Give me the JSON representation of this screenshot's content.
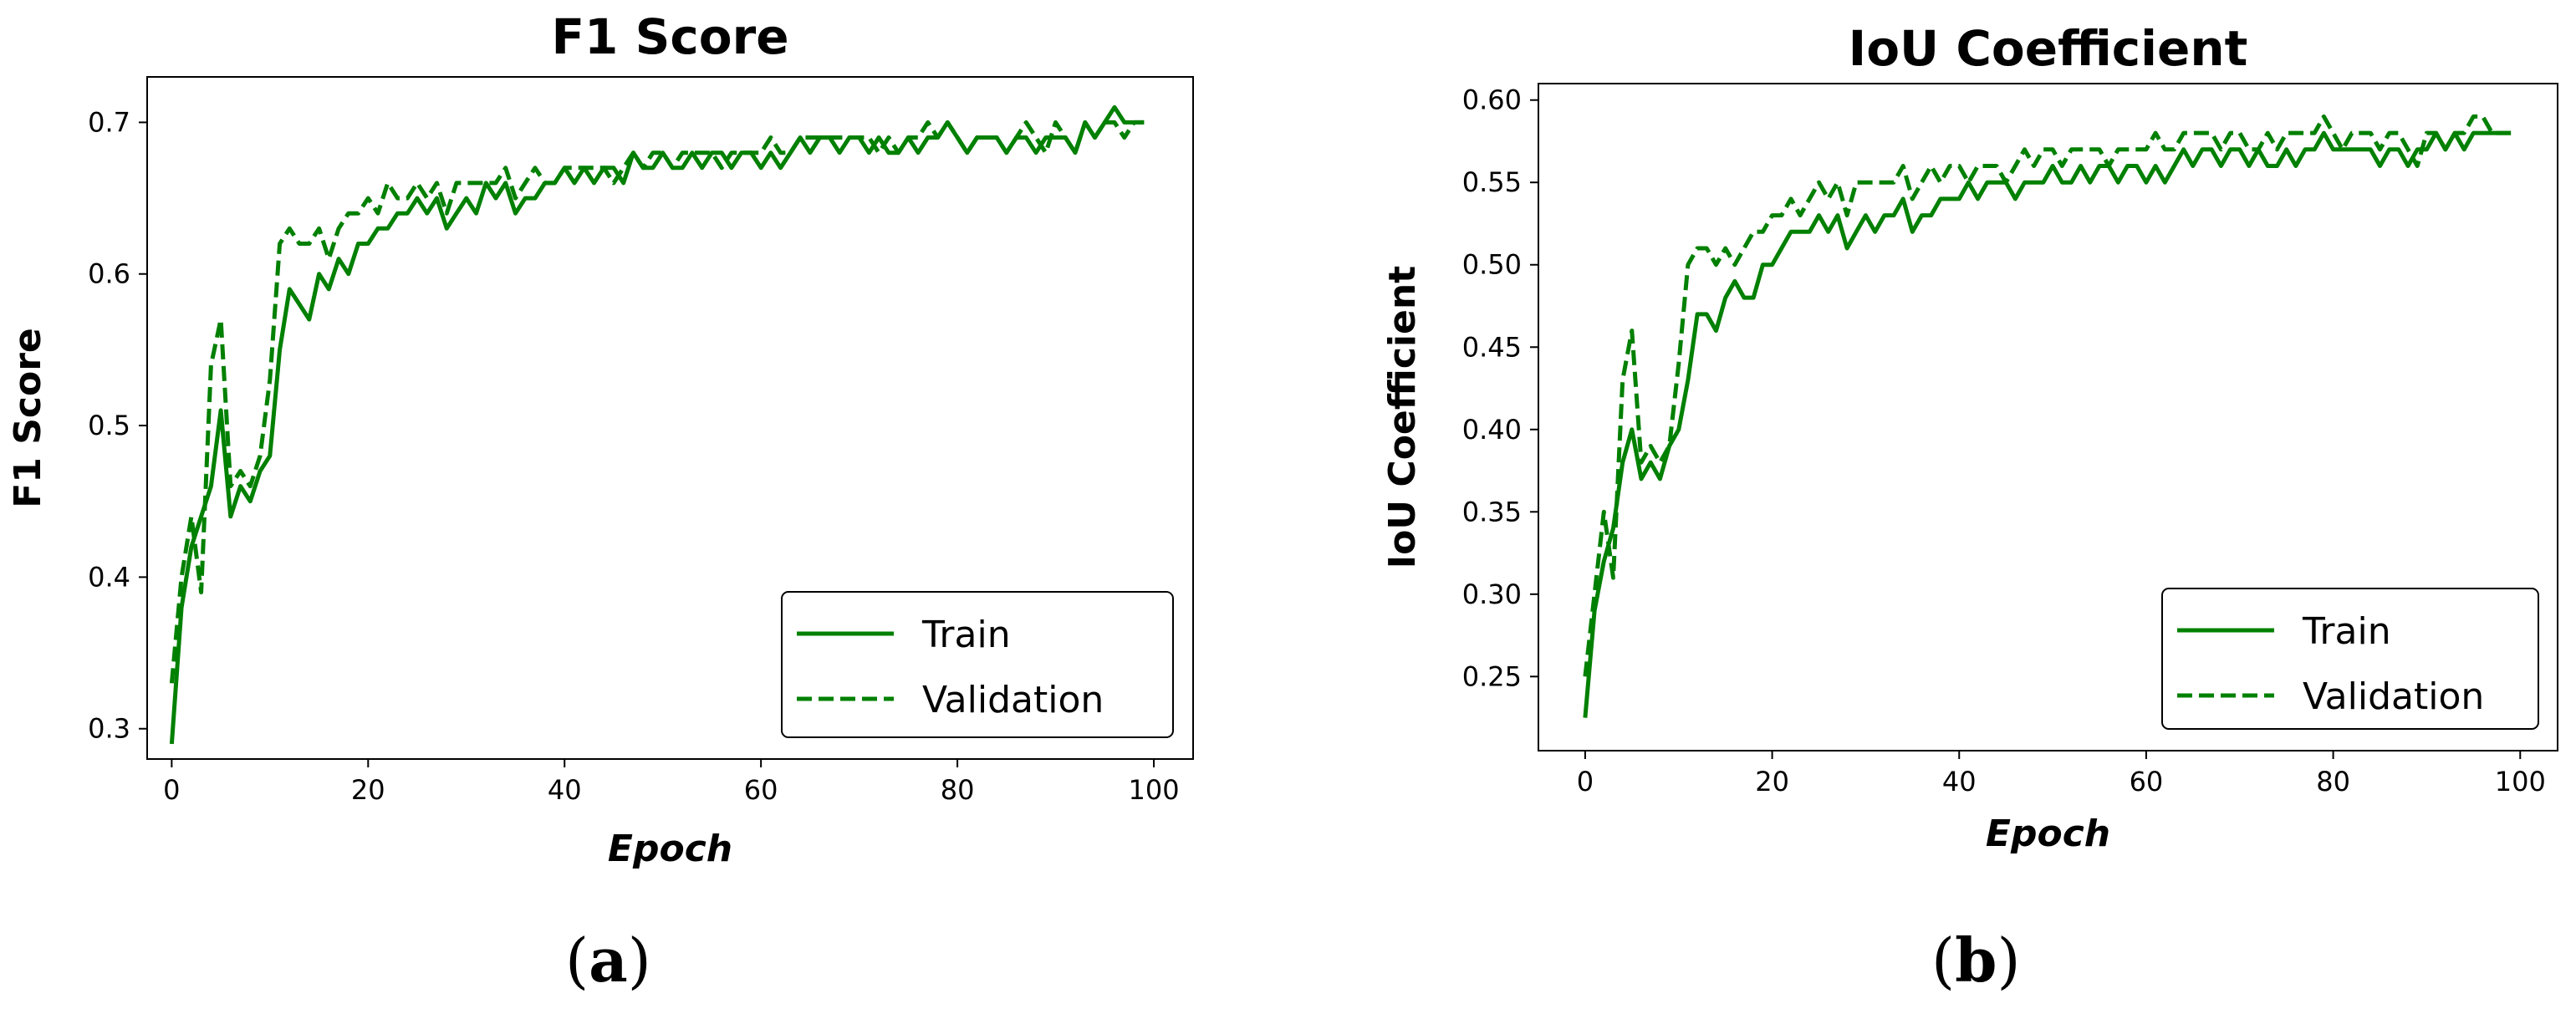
{
  "colors": {
    "line": "#008000",
    "axis": "#000000",
    "background": "#ffffff"
  },
  "panel_labels": {
    "a": "a",
    "b": "b"
  },
  "chart_data": [
    {
      "type": "line",
      "title": "F1 Score",
      "xlabel": "Epoch",
      "ylabel": "F1 Score",
      "xlim": [
        -2.5,
        104
      ],
      "ylim": [
        0.28,
        0.73
      ],
      "xticks": [
        0,
        20,
        40,
        60,
        80,
        100
      ],
      "yticks": [
        0.3,
        0.4,
        0.5,
        0.6,
        0.7
      ],
      "ytick_labels": [
        "0.3",
        "0.4",
        "0.5",
        "0.6",
        "0.7"
      ],
      "grid": false,
      "legend_position": "lower-right",
      "series": [
        {
          "name": "Train",
          "style": "solid",
          "x": [
            0,
            1,
            2,
            3,
            4,
            5,
            6,
            7,
            8,
            9,
            10,
            11,
            12,
            13,
            14,
            15,
            16,
            17,
            18,
            19,
            20,
            21,
            22,
            23,
            24,
            25,
            26,
            27,
            28,
            29,
            30,
            31,
            32,
            33,
            34,
            35,
            36,
            37,
            38,
            39,
            40,
            41,
            42,
            43,
            44,
            45,
            46,
            47,
            48,
            49,
            50,
            51,
            52,
            53,
            54,
            55,
            56,
            57,
            58,
            59,
            60,
            61,
            62,
            63,
            64,
            65,
            66,
            67,
            68,
            69,
            70,
            71,
            72,
            73,
            74,
            75,
            76,
            77,
            78,
            79,
            80,
            81,
            82,
            83,
            84,
            85,
            86,
            87,
            88,
            89,
            90,
            91,
            92,
            93,
            94,
            95,
            96,
            97,
            98,
            99
          ],
          "values": [
            0.29,
            0.38,
            0.42,
            0.44,
            0.46,
            0.51,
            0.44,
            0.46,
            0.45,
            0.47,
            0.48,
            0.55,
            0.59,
            0.58,
            0.57,
            0.6,
            0.59,
            0.61,
            0.6,
            0.62,
            0.62,
            0.63,
            0.63,
            0.64,
            0.64,
            0.65,
            0.64,
            0.65,
            0.63,
            0.64,
            0.65,
            0.64,
            0.66,
            0.65,
            0.66,
            0.64,
            0.65,
            0.65,
            0.66,
            0.66,
            0.67,
            0.66,
            0.67,
            0.66,
            0.67,
            0.67,
            0.66,
            0.68,
            0.67,
            0.67,
            0.68,
            0.67,
            0.67,
            0.68,
            0.67,
            0.68,
            0.68,
            0.67,
            0.68,
            0.68,
            0.67,
            0.68,
            0.67,
            0.68,
            0.69,
            0.68,
            0.69,
            0.69,
            0.68,
            0.69,
            0.69,
            0.68,
            0.69,
            0.68,
            0.68,
            0.69,
            0.68,
            0.69,
            0.69,
            0.7,
            0.69,
            0.68,
            0.69,
            0.69,
            0.69,
            0.68,
            0.69,
            0.69,
            0.68,
            0.69,
            0.69,
            0.69,
            0.68,
            0.7,
            0.69,
            0.7,
            0.71,
            0.7,
            0.7,
            0.7
          ]
        },
        {
          "name": "Validation",
          "style": "dashed",
          "x": [
            0,
            1,
            2,
            3,
            4,
            5,
            6,
            7,
            8,
            9,
            10,
            11,
            12,
            13,
            14,
            15,
            16,
            17,
            18,
            19,
            20,
            21,
            22,
            23,
            24,
            25,
            26,
            27,
            28,
            29,
            30,
            31,
            32,
            33,
            34,
            35,
            36,
            37,
            38,
            39,
            40,
            41,
            42,
            43,
            44,
            45,
            46,
            47,
            48,
            49,
            50,
            51,
            52,
            53,
            54,
            55,
            56,
            57,
            58,
            59,
            60,
            61,
            62,
            63,
            64,
            65,
            66,
            67,
            68,
            69,
            70,
            71,
            72,
            73,
            74,
            75,
            76,
            77,
            78,
            79,
            80,
            81,
            82,
            83,
            84,
            85,
            86,
            87,
            88,
            89,
            90,
            91,
            92,
            93,
            94,
            95,
            96,
            97,
            98,
            99
          ],
          "values": [
            0.33,
            0.4,
            0.44,
            0.39,
            0.54,
            0.57,
            0.46,
            0.47,
            0.46,
            0.48,
            0.53,
            0.62,
            0.63,
            0.62,
            0.62,
            0.63,
            0.61,
            0.63,
            0.64,
            0.64,
            0.65,
            0.64,
            0.66,
            0.65,
            0.65,
            0.66,
            0.65,
            0.66,
            0.64,
            0.66,
            0.66,
            0.66,
            0.66,
            0.66,
            0.67,
            0.65,
            0.66,
            0.67,
            0.66,
            0.66,
            0.67,
            0.67,
            0.67,
            0.67,
            0.67,
            0.66,
            0.67,
            0.68,
            0.67,
            0.68,
            0.68,
            0.67,
            0.68,
            0.68,
            0.68,
            0.68,
            0.67,
            0.68,
            0.68,
            0.68,
            0.68,
            0.69,
            0.68,
            0.68,
            0.69,
            0.69,
            0.69,
            0.69,
            0.69,
            0.69,
            0.69,
            0.69,
            0.68,
            0.69,
            0.68,
            0.69,
            0.69,
            0.7,
            0.69,
            0.7,
            0.69,
            0.68,
            0.69,
            0.69,
            0.69,
            0.68,
            0.69,
            0.7,
            0.69,
            0.68,
            0.7,
            0.69,
            0.68,
            0.7,
            0.69,
            0.7,
            0.7,
            0.69,
            0.7,
            0.7
          ]
        }
      ]
    },
    {
      "type": "line",
      "title": "IoU Coefficient",
      "xlabel": "Epoch",
      "ylabel": "IoU Coefficient",
      "xlim": [
        -5,
        104
      ],
      "ylim": [
        0.205,
        0.61
      ],
      "xticks": [
        0,
        20,
        40,
        60,
        80,
        100
      ],
      "yticks": [
        0.25,
        0.3,
        0.35,
        0.4,
        0.45,
        0.5,
        0.55,
        0.6
      ],
      "ytick_labels": [
        "0.25",
        "0.30",
        "0.35",
        "0.40",
        "0.45",
        "0.50",
        "0.55",
        "0.60"
      ],
      "grid": false,
      "legend_position": "lower-right",
      "series": [
        {
          "name": "Train",
          "style": "solid",
          "x": [
            0,
            1,
            2,
            3,
            4,
            5,
            6,
            7,
            8,
            9,
            10,
            11,
            12,
            13,
            14,
            15,
            16,
            17,
            18,
            19,
            20,
            21,
            22,
            23,
            24,
            25,
            26,
            27,
            28,
            29,
            30,
            31,
            32,
            33,
            34,
            35,
            36,
            37,
            38,
            39,
            40,
            41,
            42,
            43,
            44,
            45,
            46,
            47,
            48,
            49,
            50,
            51,
            52,
            53,
            54,
            55,
            56,
            57,
            58,
            59,
            60,
            61,
            62,
            63,
            64,
            65,
            66,
            67,
            68,
            69,
            70,
            71,
            72,
            73,
            74,
            75,
            76,
            77,
            78,
            79,
            80,
            81,
            82,
            83,
            84,
            85,
            86,
            87,
            88,
            89,
            90,
            91,
            92,
            93,
            94,
            95,
            96,
            97,
            98,
            99
          ],
          "values": [
            0.225,
            0.29,
            0.32,
            0.34,
            0.38,
            0.4,
            0.37,
            0.38,
            0.37,
            0.39,
            0.4,
            0.43,
            0.47,
            0.47,
            0.46,
            0.48,
            0.49,
            0.48,
            0.48,
            0.5,
            0.5,
            0.51,
            0.52,
            0.52,
            0.52,
            0.53,
            0.52,
            0.53,
            0.51,
            0.52,
            0.53,
            0.52,
            0.53,
            0.53,
            0.54,
            0.52,
            0.53,
            0.53,
            0.54,
            0.54,
            0.54,
            0.55,
            0.54,
            0.55,
            0.55,
            0.55,
            0.54,
            0.55,
            0.55,
            0.55,
            0.56,
            0.55,
            0.55,
            0.56,
            0.55,
            0.56,
            0.56,
            0.55,
            0.56,
            0.56,
            0.55,
            0.56,
            0.55,
            0.56,
            0.57,
            0.56,
            0.57,
            0.57,
            0.56,
            0.57,
            0.57,
            0.56,
            0.57,
            0.56,
            0.56,
            0.57,
            0.56,
            0.57,
            0.57,
            0.58,
            0.57,
            0.57,
            0.57,
            0.57,
            0.57,
            0.56,
            0.57,
            0.57,
            0.56,
            0.57,
            0.57,
            0.58,
            0.57,
            0.58,
            0.57,
            0.58,
            0.58,
            0.58,
            0.58,
            0.58
          ]
        },
        {
          "name": "Validation",
          "style": "dashed",
          "x": [
            0,
            1,
            2,
            3,
            4,
            5,
            6,
            7,
            8,
            9,
            10,
            11,
            12,
            13,
            14,
            15,
            16,
            17,
            18,
            19,
            20,
            21,
            22,
            23,
            24,
            25,
            26,
            27,
            28,
            29,
            30,
            31,
            32,
            33,
            34,
            35,
            36,
            37,
            38,
            39,
            40,
            41,
            42,
            43,
            44,
            45,
            46,
            47,
            48,
            49,
            50,
            51,
            52,
            53,
            54,
            55,
            56,
            57,
            58,
            59,
            60,
            61,
            62,
            63,
            64,
            65,
            66,
            67,
            68,
            69,
            70,
            71,
            72,
            73,
            74,
            75,
            76,
            77,
            78,
            79,
            80,
            81,
            82,
            83,
            84,
            85,
            86,
            87,
            88,
            89,
            90,
            91,
            92,
            93,
            94,
            95,
            96,
            97,
            98,
            99
          ],
          "values": [
            0.25,
            0.3,
            0.35,
            0.31,
            0.43,
            0.46,
            0.38,
            0.39,
            0.38,
            0.39,
            0.44,
            0.5,
            0.51,
            0.51,
            0.5,
            0.51,
            0.5,
            0.51,
            0.52,
            0.52,
            0.53,
            0.53,
            0.54,
            0.53,
            0.54,
            0.55,
            0.54,
            0.55,
            0.53,
            0.55,
            0.55,
            0.55,
            0.55,
            0.55,
            0.56,
            0.54,
            0.55,
            0.56,
            0.55,
            0.56,
            0.56,
            0.55,
            0.56,
            0.56,
            0.56,
            0.55,
            0.56,
            0.57,
            0.56,
            0.57,
            0.57,
            0.56,
            0.57,
            0.57,
            0.57,
            0.57,
            0.56,
            0.57,
            0.57,
            0.57,
            0.57,
            0.58,
            0.57,
            0.57,
            0.58,
            0.58,
            0.58,
            0.58,
            0.57,
            0.58,
            0.58,
            0.57,
            0.57,
            0.58,
            0.57,
            0.58,
            0.58,
            0.58,
            0.58,
            0.59,
            0.58,
            0.57,
            0.58,
            0.58,
            0.58,
            0.57,
            0.58,
            0.58,
            0.57,
            0.56,
            0.58,
            0.58,
            0.57,
            0.58,
            0.58,
            0.59,
            0.59,
            0.58,
            0.58,
            0.58
          ]
        }
      ]
    }
  ]
}
